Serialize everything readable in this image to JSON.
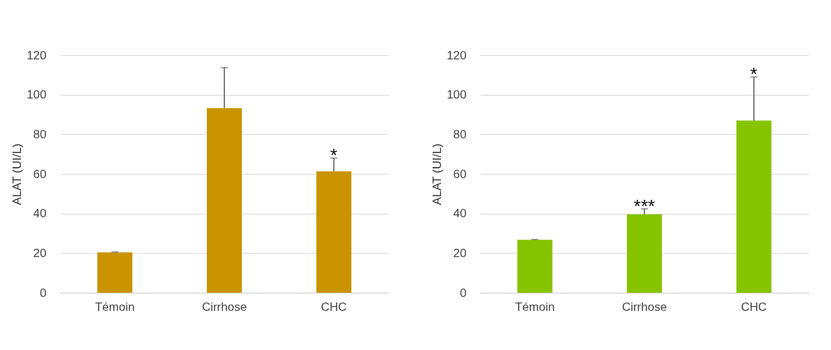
{
  "chart_data": [
    {
      "type": "bar",
      "ylabel": "ALAT (UI/L)",
      "categories": [
        "Témoin",
        "Cirrhose",
        "CHC"
      ],
      "grid": "y",
      "ylim": [
        0,
        120
      ],
      "yticks": [
        0,
        20,
        40,
        60,
        80,
        100,
        120
      ],
      "series": [
        {
          "color": "#c99400",
          "values": [
            20.4,
            93.3,
            61.3
          ],
          "errors": [
            [
              20.4,
              20.6
            ],
            [
              93.3,
              113.7
            ],
            [
              61.3,
              68
            ]
          ]
        }
      ],
      "annotations": [
        {
          "text": "*",
          "x": "CHC",
          "y": 68
        }
      ]
    },
    {
      "type": "bar",
      "ylabel": "ALAT (UI/L)",
      "categories": [
        "Témoin",
        "Cirrhose",
        "CHC"
      ],
      "grid": "y",
      "ylim": [
        0,
        120
      ],
      "yticks": [
        0,
        20,
        40,
        60,
        80,
        100,
        120
      ],
      "series": [
        {
          "color": "#86c400",
          "values": [
            26.7,
            39.6,
            87
          ],
          "errors": [
            [
              26.7,
              26.9
            ],
            [
              39.6,
              42.4
            ],
            [
              87,
              109
            ]
          ]
        }
      ],
      "annotations": [
        {
          "text": "***",
          "x": "Cirrhose",
          "y": 42.4
        },
        {
          "text": "*",
          "x": "CHC",
          "y": 109
        }
      ]
    }
  ]
}
